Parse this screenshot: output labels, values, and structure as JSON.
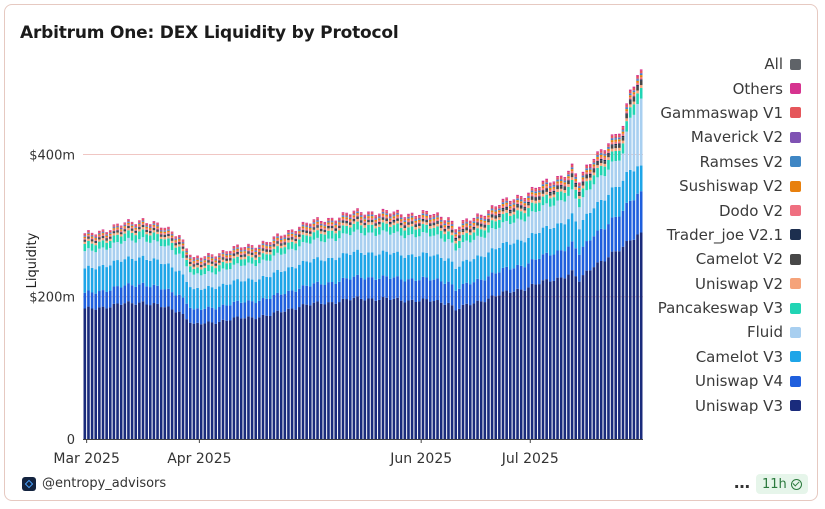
{
  "chart_data": {
    "type": "bar",
    "stacked": true,
    "title": "Arbitrum One: DEX Liquidity by Protocol",
    "xlabel": "",
    "ylabel": "Liquidity",
    "ylim": [
      0,
      530
    ],
    "yticks": [
      {
        "value": 0,
        "label": "0"
      },
      {
        "value": 200,
        "label": "$200m"
      },
      {
        "value": 400,
        "label": "$400m"
      }
    ],
    "grid": "horizontal",
    "legend_position": "right",
    "x_start": "2025-02-28",
    "x_end": "2025-07-31",
    "xticks": [
      {
        "date": "2025-03-01",
        "label": "Mar 2025"
      },
      {
        "date": "2025-04-01",
        "label": "Apr 2025"
      },
      {
        "date": "2025-06-01",
        "label": "Jun 2025"
      },
      {
        "date": "2025-07-01",
        "label": "Jul 2025"
      }
    ],
    "legend_entries": [
      {
        "name": "All",
        "color": "#5f6368"
      },
      {
        "name": "Others",
        "color": "#d6338f"
      },
      {
        "name": "Gammaswap V1",
        "color": "#e5565b"
      },
      {
        "name": "Maverick V2",
        "color": "#7f52b3"
      },
      {
        "name": "Ramses V2",
        "color": "#3f86c4"
      },
      {
        "name": "Sushiswap V2",
        "color": "#e8800e"
      },
      {
        "name": "Dodo V2",
        "color": "#ef6f80"
      },
      {
        "name": "Trader_joe V2.1",
        "color": "#1d2f4f"
      },
      {
        "name": "Camelot V2",
        "color": "#474747"
      },
      {
        "name": "Uniswap V2",
        "color": "#f5a37a"
      },
      {
        "name": "Pancakeswap V3",
        "color": "#21d4b4"
      },
      {
        "name": "Fluid",
        "color": "#a8cff0"
      },
      {
        "name": "Camelot V3",
        "color": "#1ea5e8"
      },
      {
        "name": "Uniswap V4",
        "color": "#1f5fdd"
      },
      {
        "name": "Uniswap V3",
        "color": "#1a2b7c"
      }
    ],
    "series": [
      {
        "name": "Uniswap V3",
        "color": "#1a2b7c",
        "points": [
          {
            "date": "2025-02-28",
            "value": 182
          },
          {
            "date": "2025-03-08",
            "value": 188
          },
          {
            "date": "2025-03-16",
            "value": 193
          },
          {
            "date": "2025-03-21",
            "value": 186
          },
          {
            "date": "2025-03-26",
            "value": 180
          },
          {
            "date": "2025-03-30",
            "value": 160
          },
          {
            "date": "2025-04-05",
            "value": 165
          },
          {
            "date": "2025-04-12",
            "value": 170
          },
          {
            "date": "2025-04-20",
            "value": 174
          },
          {
            "date": "2025-04-28",
            "value": 187
          },
          {
            "date": "2025-05-06",
            "value": 192
          },
          {
            "date": "2025-05-15",
            "value": 198
          },
          {
            "date": "2025-05-24",
            "value": 196
          },
          {
            "date": "2025-06-03",
            "value": 194
          },
          {
            "date": "2025-06-08",
            "value": 192
          },
          {
            "date": "2025-06-10",
            "value": 182
          },
          {
            "date": "2025-06-20",
            "value": 200
          },
          {
            "date": "2025-06-30",
            "value": 214
          },
          {
            "date": "2025-07-08",
            "value": 226
          },
          {
            "date": "2025-07-12",
            "value": 234
          },
          {
            "date": "2025-07-14",
            "value": 222
          },
          {
            "date": "2025-07-18",
            "value": 245
          },
          {
            "date": "2025-07-24",
            "value": 262
          },
          {
            "date": "2025-07-26",
            "value": 268
          },
          {
            "date": "2025-07-28",
            "value": 282
          },
          {
            "date": "2025-07-31",
            "value": 290
          }
        ]
      },
      {
        "name": "Uniswap V4",
        "color": "#1f5fdd",
        "points": [
          {
            "date": "2025-02-28",
            "value": 22
          },
          {
            "date": "2025-03-08",
            "value": 24
          },
          {
            "date": "2025-03-16",
            "value": 26
          },
          {
            "date": "2025-03-21",
            "value": 25
          },
          {
            "date": "2025-03-26",
            "value": 24
          },
          {
            "date": "2025-03-30",
            "value": 20
          },
          {
            "date": "2025-04-05",
            "value": 21
          },
          {
            "date": "2025-04-12",
            "value": 22
          },
          {
            "date": "2025-04-20",
            "value": 24
          },
          {
            "date": "2025-04-28",
            "value": 26
          },
          {
            "date": "2025-05-06",
            "value": 28
          },
          {
            "date": "2025-05-15",
            "value": 30
          },
          {
            "date": "2025-05-24",
            "value": 30
          },
          {
            "date": "2025-06-03",
            "value": 30
          },
          {
            "date": "2025-06-08",
            "value": 30
          },
          {
            "date": "2025-06-10",
            "value": 28
          },
          {
            "date": "2025-06-20",
            "value": 32
          },
          {
            "date": "2025-06-30",
            "value": 34
          },
          {
            "date": "2025-07-08",
            "value": 38
          },
          {
            "date": "2025-07-12",
            "value": 40
          },
          {
            "date": "2025-07-14",
            "value": 38
          },
          {
            "date": "2025-07-18",
            "value": 44
          },
          {
            "date": "2025-07-24",
            "value": 48
          },
          {
            "date": "2025-07-26",
            "value": 50
          },
          {
            "date": "2025-07-28",
            "value": 56
          },
          {
            "date": "2025-07-31",
            "value": 58
          }
        ]
      },
      {
        "name": "Camelot V3",
        "color": "#1ea5e8",
        "points": [
          {
            "date": "2025-02-28",
            "value": 34
          },
          {
            "date": "2025-03-08",
            "value": 36
          },
          {
            "date": "2025-03-16",
            "value": 38
          },
          {
            "date": "2025-03-21",
            "value": 36
          },
          {
            "date": "2025-03-26",
            "value": 34
          },
          {
            "date": "2025-03-30",
            "value": 28
          },
          {
            "date": "2025-04-05",
            "value": 29
          },
          {
            "date": "2025-04-12",
            "value": 30
          },
          {
            "date": "2025-04-20",
            "value": 31
          },
          {
            "date": "2025-04-28",
            "value": 34
          },
          {
            "date": "2025-05-06",
            "value": 34
          },
          {
            "date": "2025-05-15",
            "value": 35
          },
          {
            "date": "2025-05-24",
            "value": 34
          },
          {
            "date": "2025-06-03",
            "value": 34
          },
          {
            "date": "2025-06-08",
            "value": 33
          },
          {
            "date": "2025-06-10",
            "value": 31
          },
          {
            "date": "2025-06-20",
            "value": 34
          },
          {
            "date": "2025-06-30",
            "value": 36
          },
          {
            "date": "2025-07-08",
            "value": 38
          },
          {
            "date": "2025-07-12",
            "value": 39
          },
          {
            "date": "2025-07-14",
            "value": 36
          },
          {
            "date": "2025-07-18",
            "value": 40
          },
          {
            "date": "2025-07-24",
            "value": 42
          },
          {
            "date": "2025-07-26",
            "value": 42
          },
          {
            "date": "2025-07-28",
            "value": 44
          },
          {
            "date": "2025-07-31",
            "value": 36
          }
        ]
      },
      {
        "name": "Fluid",
        "color": "#a8cff0",
        "points": [
          {
            "date": "2025-02-28",
            "value": 24
          },
          {
            "date": "2025-03-08",
            "value": 25
          },
          {
            "date": "2025-03-16",
            "value": 26
          },
          {
            "date": "2025-03-21",
            "value": 25
          },
          {
            "date": "2025-03-26",
            "value": 24
          },
          {
            "date": "2025-03-30",
            "value": 20
          },
          {
            "date": "2025-04-05",
            "value": 21
          },
          {
            "date": "2025-04-12",
            "value": 22
          },
          {
            "date": "2025-04-20",
            "value": 23
          },
          {
            "date": "2025-04-28",
            "value": 26
          },
          {
            "date": "2025-05-06",
            "value": 27
          },
          {
            "date": "2025-05-15",
            "value": 28
          },
          {
            "date": "2025-05-24",
            "value": 28
          },
          {
            "date": "2025-06-03",
            "value": 28
          },
          {
            "date": "2025-06-08",
            "value": 27
          },
          {
            "date": "2025-06-10",
            "value": 26
          },
          {
            "date": "2025-06-20",
            "value": 28
          },
          {
            "date": "2025-06-30",
            "value": 30
          },
          {
            "date": "2025-07-08",
            "value": 32
          },
          {
            "date": "2025-07-12",
            "value": 33
          },
          {
            "date": "2025-07-14",
            "value": 31
          },
          {
            "date": "2025-07-18",
            "value": 34
          },
          {
            "date": "2025-07-24",
            "value": 36
          },
          {
            "date": "2025-07-26",
            "value": 38
          },
          {
            "date": "2025-07-28",
            "value": 74
          },
          {
            "date": "2025-07-31",
            "value": 94
          }
        ]
      },
      {
        "name": "Pancakeswap V3",
        "color": "#21d4b4",
        "points": [
          {
            "date": "2025-02-28",
            "value": 10
          },
          {
            "date": "2025-03-08",
            "value": 10
          },
          {
            "date": "2025-03-16",
            "value": 11
          },
          {
            "date": "2025-03-21",
            "value": 10
          },
          {
            "date": "2025-03-26",
            "value": 10
          },
          {
            "date": "2025-03-30",
            "value": 8
          },
          {
            "date": "2025-04-05",
            "value": 9
          },
          {
            "date": "2025-04-12",
            "value": 9
          },
          {
            "date": "2025-04-20",
            "value": 9
          },
          {
            "date": "2025-04-28",
            "value": 10
          },
          {
            "date": "2025-05-06",
            "value": 11
          },
          {
            "date": "2025-05-15",
            "value": 11
          },
          {
            "date": "2025-05-24",
            "value": 11
          },
          {
            "date": "2025-06-03",
            "value": 11
          },
          {
            "date": "2025-06-08",
            "value": 11
          },
          {
            "date": "2025-06-10",
            "value": 10
          },
          {
            "date": "2025-06-20",
            "value": 11
          },
          {
            "date": "2025-06-30",
            "value": 12
          },
          {
            "date": "2025-07-08",
            "value": 12
          },
          {
            "date": "2025-07-12",
            "value": 13
          },
          {
            "date": "2025-07-14",
            "value": 12
          },
          {
            "date": "2025-07-18",
            "value": 13
          },
          {
            "date": "2025-07-24",
            "value": 14
          },
          {
            "date": "2025-07-26",
            "value": 14
          },
          {
            "date": "2025-07-28",
            "value": 15
          },
          {
            "date": "2025-07-31",
            "value": 15
          }
        ]
      },
      {
        "name": "Uniswap V2",
        "color": "#f5a37a",
        "points": [
          {
            "date": "2025-02-28",
            "value": 3
          },
          {
            "date": "2025-07-31",
            "value": 4
          }
        ]
      },
      {
        "name": "Camelot V2",
        "color": "#474747",
        "points": [
          {
            "date": "2025-02-28",
            "value": 2
          },
          {
            "date": "2025-06-01",
            "value": 2
          },
          {
            "date": "2025-07-24",
            "value": 4
          },
          {
            "date": "2025-07-31",
            "value": 6
          }
        ]
      },
      {
        "name": "Trader_joe V2.1",
        "color": "#1d2f4f",
        "points": [
          {
            "date": "2025-02-28",
            "value": 1
          },
          {
            "date": "2025-07-31",
            "value": 2
          }
        ]
      },
      {
        "name": "Dodo V2",
        "color": "#ef6f80",
        "points": [
          {
            "date": "2025-02-28",
            "value": 2
          },
          {
            "date": "2025-07-31",
            "value": 3
          }
        ]
      },
      {
        "name": "Sushiswap V2",
        "color": "#e8800e",
        "points": [
          {
            "date": "2025-02-28",
            "value": 2
          },
          {
            "date": "2025-07-31",
            "value": 3
          }
        ]
      },
      {
        "name": "Ramses V2",
        "color": "#3f86c4",
        "points": [
          {
            "date": "2025-02-28",
            "value": 1
          },
          {
            "date": "2025-07-31",
            "value": 2
          }
        ]
      },
      {
        "name": "Maverick V2",
        "color": "#7f52b3",
        "points": [
          {
            "date": "2025-02-28",
            "value": 1
          },
          {
            "date": "2025-07-31",
            "value": 1
          }
        ]
      },
      {
        "name": "Gammaswap V1",
        "color": "#e5565b",
        "points": [
          {
            "date": "2025-02-28",
            "value": 2
          },
          {
            "date": "2025-07-31",
            "value": 3
          }
        ]
      },
      {
        "name": "Others",
        "color": "#d6338f",
        "points": [
          {
            "date": "2025-02-28",
            "value": 1
          },
          {
            "date": "2025-07-31",
            "value": 2
          }
        ]
      }
    ]
  },
  "footer": {
    "username": "@entropy_advisors",
    "more_label": "…",
    "refresh_badge": "11h"
  }
}
